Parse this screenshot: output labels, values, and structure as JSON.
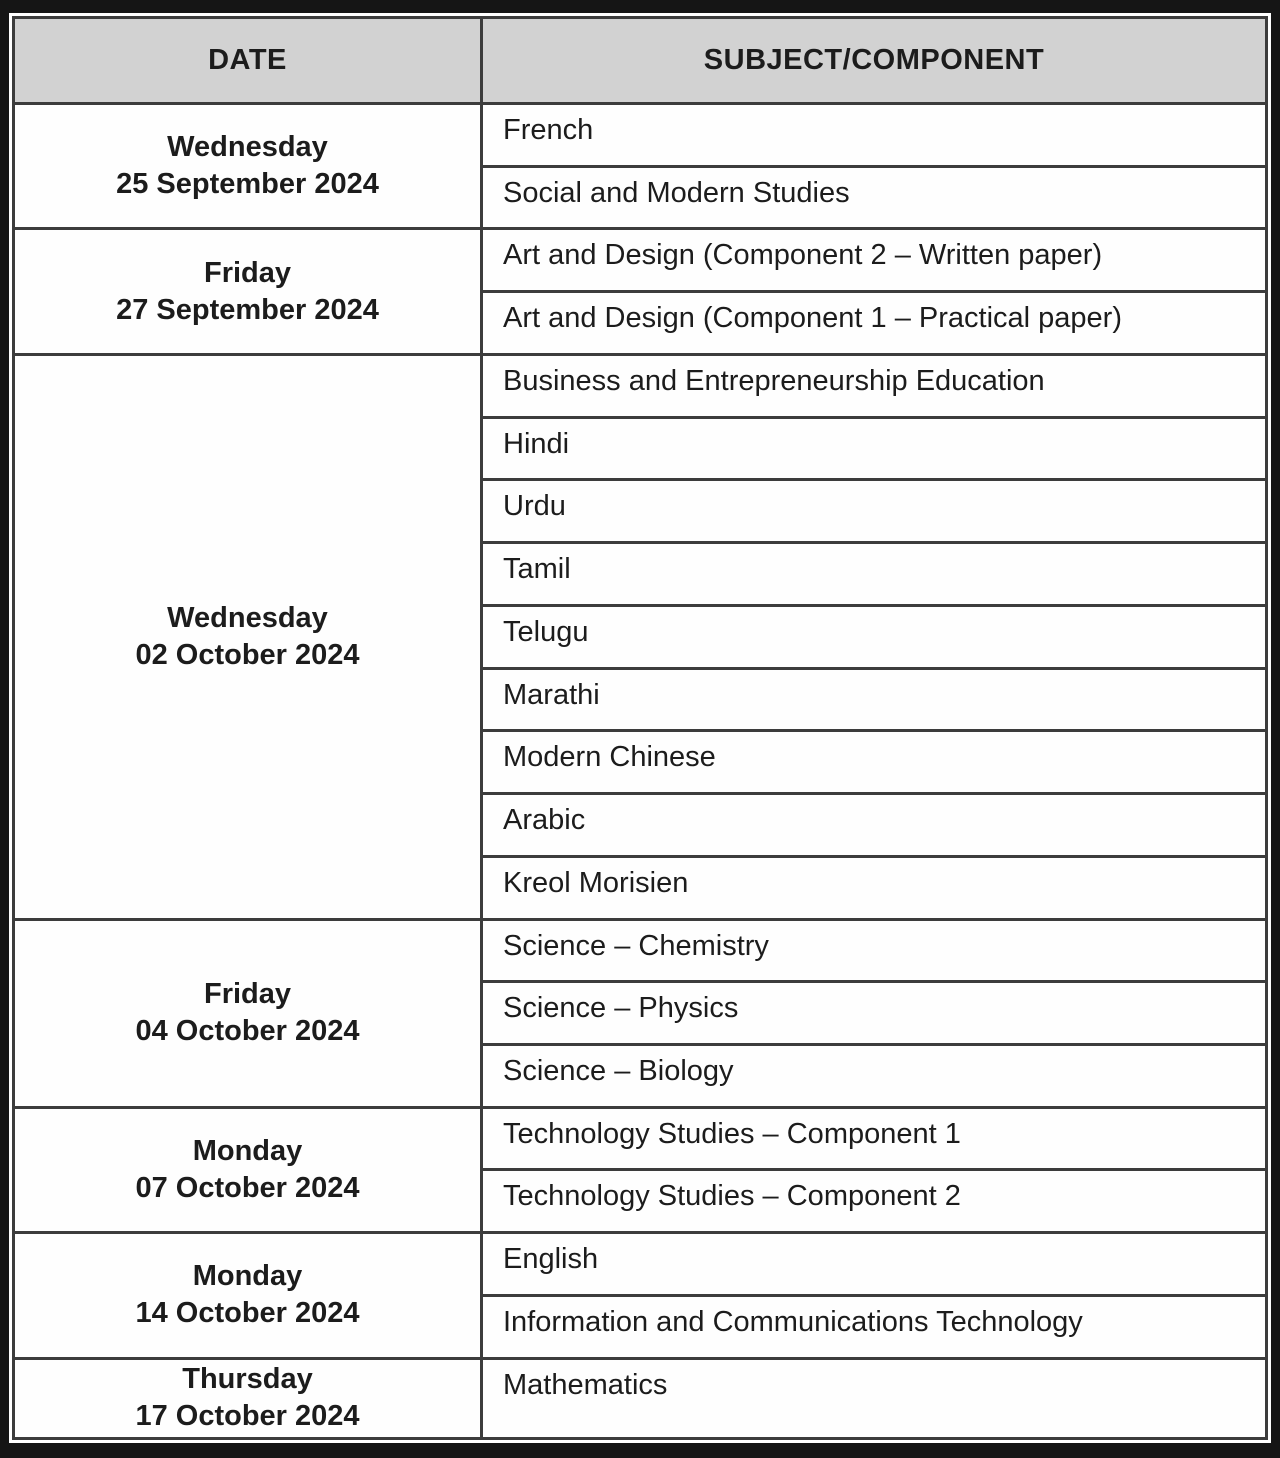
{
  "table": {
    "headers": {
      "date": "DATE",
      "subject": "SUBJECT/COMPONENT"
    },
    "groups": [
      {
        "date_line1": "Wednesday",
        "date_line2": "25 September 2024",
        "subjects": [
          "French",
          "Social and Modern Studies"
        ]
      },
      {
        "date_line1": "Friday",
        "date_line2": "27 September 2024",
        "subjects": [
          "Art and Design (Component 2 – Written paper)",
          "Art and Design (Component 1 – Practical paper)"
        ]
      },
      {
        "date_line1": "Wednesday",
        "date_line2": "02 October 2024",
        "subjects": [
          "Business and Entrepreneurship Education",
          "Hindi",
          "Urdu",
          "Tamil",
          "Telugu",
          "Marathi",
          "Modern Chinese",
          "Arabic",
          "Kreol Morisien"
        ]
      },
      {
        "date_line1": "Friday",
        "date_line2": "04 October 2024",
        "subjects": [
          "Science – Chemistry",
          "Science – Physics",
          "Science – Biology"
        ]
      },
      {
        "date_line1": "Monday",
        "date_line2": "07 October 2024",
        "subjects": [
          "Technology Studies – Component 1",
          "Technology Studies – Component 2"
        ]
      },
      {
        "date_line1": "Monday",
        "date_line2": "14 October 2024",
        "subjects": [
          "English",
          "Information and Communications Technology"
        ]
      },
      {
        "date_line1": "Thursday",
        "date_line2": "17 October 2024",
        "subjects": [
          "Mathematics"
        ]
      }
    ],
    "colors": {
      "header_bg": "#d2d2d2",
      "inner_border": "#3c3c3c",
      "outer_border": "#151515",
      "text": "#1c1c1c"
    }
  }
}
